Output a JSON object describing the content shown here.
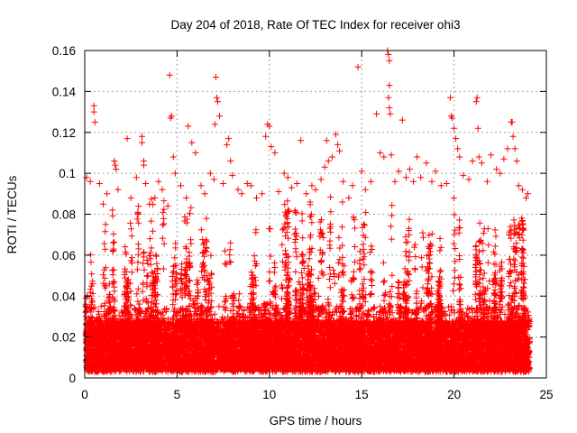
{
  "chart_data": {
    "type": "scatter",
    "title": "Day 204 of 2018, Rate Of TEC Index for receiver ohi3",
    "xlabel": "GPS time / hours",
    "ylabel": "ROTI / TECUs",
    "xlim": [
      0,
      25
    ],
    "ylim": [
      0,
      0.16
    ],
    "xticks": [
      0,
      5,
      10,
      15,
      20,
      25
    ],
    "xtick_labels": [
      "0",
      "5",
      "10",
      "15",
      "20",
      "25"
    ],
    "yticks": [
      0,
      0.02,
      0.04,
      0.06,
      0.08,
      0.1,
      0.12,
      0.14,
      0.16
    ],
    "ytick_labels": [
      "0",
      "0.02",
      "0.04",
      "0.06",
      "0.08",
      "0.1",
      "0.12",
      "0.14",
      "0.16"
    ],
    "grid": true,
    "marker": "+",
    "color": "#ff0000",
    "series": [
      {
        "points": [
          [
            0.1,
            0.098
          ],
          [
            0.3,
            0.096
          ],
          [
            0.5,
            0.133
          ],
          [
            0.5,
            0.13
          ],
          [
            0.55,
            0.125
          ],
          [
            0.8,
            0.095
          ],
          [
            1.0,
            0.085
          ],
          [
            1.2,
            0.09
          ],
          [
            1.5,
            0.082
          ],
          [
            1.6,
            0.106
          ],
          [
            1.65,
            0.104
          ],
          [
            1.7,
            0.102
          ],
          [
            1.8,
            0.092
          ],
          [
            2.3,
            0.117
          ],
          [
            2.5,
            0.088
          ],
          [
            2.8,
            0.098
          ],
          [
            3.1,
            0.118
          ],
          [
            3.1,
            0.115
          ],
          [
            3.2,
            0.106
          ],
          [
            3.2,
            0.104
          ],
          [
            3.3,
            0.095
          ],
          [
            3.5,
            0.085
          ],
          [
            3.8,
            0.088
          ],
          [
            4.0,
            0.096
          ],
          [
            4.2,
            0.092
          ],
          [
            4.5,
            0.084
          ],
          [
            4.6,
            0.148
          ],
          [
            4.65,
            0.127
          ],
          [
            4.7,
            0.128
          ],
          [
            4.8,
            0.108
          ],
          [
            4.9,
            0.1
          ],
          [
            5.2,
            0.094
          ],
          [
            5.5,
            0.088
          ],
          [
            5.6,
            0.123
          ],
          [
            5.8,
            0.115
          ],
          [
            6.0,
            0.11
          ],
          [
            6.3,
            0.094
          ],
          [
            6.5,
            0.09
          ],
          [
            6.8,
            0.1
          ],
          [
            7.0,
            0.097
          ],
          [
            7.05,
            0.124
          ],
          [
            7.1,
            0.147
          ],
          [
            7.15,
            0.137
          ],
          [
            7.2,
            0.135
          ],
          [
            7.3,
            0.128
          ],
          [
            7.5,
            0.095
          ],
          [
            7.7,
            0.114
          ],
          [
            7.8,
            0.117
          ],
          [
            7.9,
            0.106
          ],
          [
            8.0,
            0.099
          ],
          [
            8.3,
            0.092
          ],
          [
            8.5,
            0.09
          ],
          [
            8.8,
            0.095
          ],
          [
            9.0,
            0.094
          ],
          [
            9.3,
            0.088
          ],
          [
            9.6,
            0.09
          ],
          [
            9.8,
            0.118
          ],
          [
            9.9,
            0.124
          ],
          [
            10.0,
            0.123
          ],
          [
            10.1,
            0.113
          ],
          [
            10.3,
            0.11
          ],
          [
            10.5,
            0.091
          ],
          [
            10.8,
            0.1
          ],
          [
            11.0,
            0.098
          ],
          [
            11.2,
            0.093
          ],
          [
            11.5,
            0.095
          ],
          [
            11.7,
            0.116
          ],
          [
            12.0,
            0.09
          ],
          [
            12.3,
            0.094
          ],
          [
            12.5,
            0.092
          ],
          [
            12.8,
            0.097
          ],
          [
            13.0,
            0.103
          ],
          [
            13.1,
            0.116
          ],
          [
            13.2,
            0.106
          ],
          [
            13.4,
            0.108
          ],
          [
            13.6,
            0.119
          ],
          [
            13.7,
            0.114
          ],
          [
            13.8,
            0.111
          ],
          [
            14.0,
            0.096
          ],
          [
            14.3,
            0.088
          ],
          [
            14.5,
            0.094
          ],
          [
            14.8,
            0.152
          ],
          [
            15.0,
            0.101
          ],
          [
            15.2,
            0.092
          ],
          [
            15.5,
            0.096
          ],
          [
            15.8,
            0.129
          ],
          [
            16.0,
            0.11
          ],
          [
            16.2,
            0.108
          ],
          [
            16.4,
            0.16
          ],
          [
            16.45,
            0.158
          ],
          [
            16.5,
            0.155
          ],
          [
            16.5,
            0.143
          ],
          [
            16.45,
            0.137
          ],
          [
            16.5,
            0.132
          ],
          [
            16.55,
            0.129
          ],
          [
            16.6,
            0.109
          ],
          [
            16.8,
            0.096
          ],
          [
            17.0,
            0.101
          ],
          [
            17.2,
            0.126
          ],
          [
            17.4,
            0.098
          ],
          [
            17.6,
            0.102
          ],
          [
            17.8,
            0.096
          ],
          [
            18.0,
            0.108
          ],
          [
            18.2,
            0.098
          ],
          [
            18.5,
            0.105
          ],
          [
            18.8,
            0.096
          ],
          [
            19.0,
            0.101
          ],
          [
            19.3,
            0.094
          ],
          [
            19.6,
            0.095
          ],
          [
            19.8,
            0.137
          ],
          [
            19.85,
            0.128
          ],
          [
            19.9,
            0.127
          ],
          [
            20.0,
            0.122
          ],
          [
            20.1,
            0.117
          ],
          [
            20.2,
            0.112
          ],
          [
            20.3,
            0.108
          ],
          [
            20.5,
            0.099
          ],
          [
            20.8,
            0.097
          ],
          [
            21.0,
            0.106
          ],
          [
            21.2,
            0.135
          ],
          [
            21.25,
            0.137
          ],
          [
            21.3,
            0.122
          ],
          [
            21.35,
            0.108
          ],
          [
            21.5,
            0.105
          ],
          [
            21.8,
            0.096
          ],
          [
            22.0,
            0.109
          ],
          [
            22.3,
            0.102
          ],
          [
            22.5,
            0.1
          ],
          [
            22.7,
            0.107
          ],
          [
            22.9,
            0.112
          ],
          [
            23.1,
            0.125
          ],
          [
            23.15,
            0.125
          ],
          [
            23.2,
            0.118
          ],
          [
            23.3,
            0.112
          ],
          [
            23.4,
            0.106
          ],
          [
            23.5,
            0.094
          ],
          [
            23.7,
            0.092
          ],
          [
            23.9,
            0.088
          ],
          [
            24.0,
            0.09
          ]
        ],
        "background_band": {
          "x_range": [
            0.05,
            24.1
          ],
          "bulk_y_range": [
            0.003,
            0.035
          ],
          "spike_y_range": [
            0.035,
            0.092
          ],
          "dense_y_range": [
            0.004,
            0.028
          ]
        }
      }
    ]
  }
}
